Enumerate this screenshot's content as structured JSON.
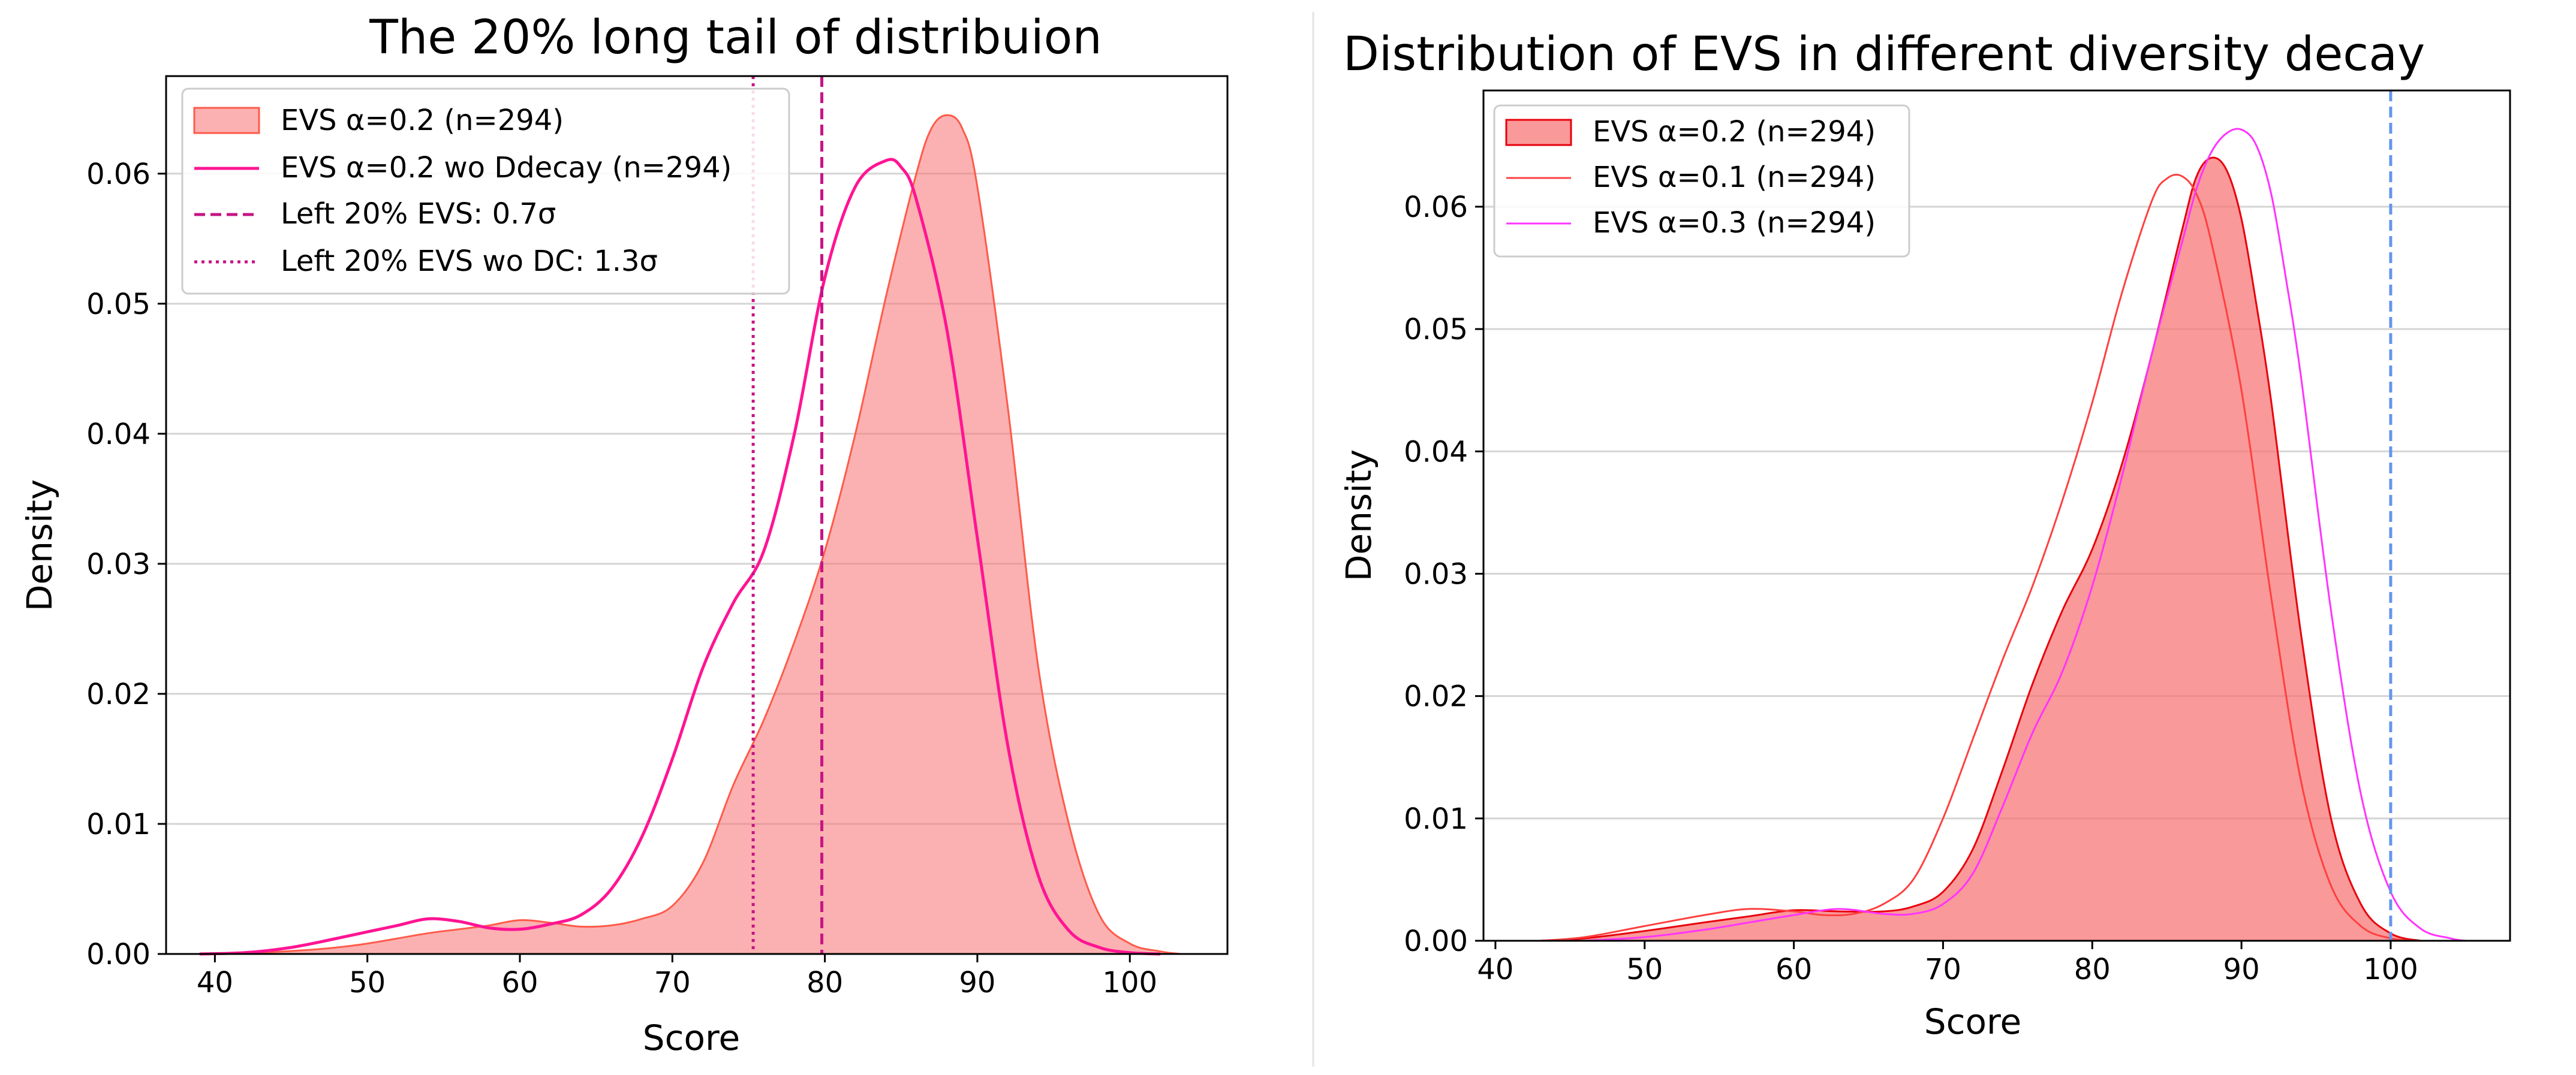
{
  "chart_data": [
    {
      "type": "area",
      "title": "The 20% long tail of distribuion",
      "xlabel": "Score",
      "ylabel": "Density",
      "xlim": [
        36.8,
        106.4
      ],
      "ylim": [
        0,
        0.0675
      ],
      "xticks": [
        40,
        50,
        60,
        70,
        80,
        90,
        100
      ],
      "yticks": [
        0.0,
        0.01,
        0.02,
        0.03,
        0.04,
        0.05,
        0.06
      ],
      "ytick_labels": [
        "0.00",
        "0.01",
        "0.02",
        "0.03",
        "0.04",
        "0.05",
        "0.06"
      ],
      "grid": "horizontal",
      "legend_location": "upper-left",
      "series": [
        {
          "name": "EVS α=0.2 (n=294)",
          "kind": "filled",
          "fill": "#f87171",
          "fill_opacity": 0.55,
          "stroke": "#ff5a4a",
          "x": [
            40,
            43,
            46,
            48,
            50,
            52,
            54,
            56,
            58,
            60,
            62,
            64,
            66,
            68,
            70,
            72,
            74,
            76,
            78,
            80,
            82,
            84,
            86,
            87,
            88,
            89,
            90,
            92,
            94,
            96,
            98,
            100,
            102,
            103.3
          ],
          "y": [
            0.0,
            0.0001,
            0.0003,
            0.0005,
            0.0008,
            0.0012,
            0.0016,
            0.0019,
            0.0022,
            0.0026,
            0.0024,
            0.0021,
            0.0022,
            0.0027,
            0.0037,
            0.007,
            0.013,
            0.018,
            0.024,
            0.031,
            0.04,
            0.0505,
            0.06,
            0.0635,
            0.0645,
            0.0635,
            0.059,
            0.042,
            0.022,
            0.01,
            0.003,
            0.0008,
            0.0002,
            0.0
          ]
        },
        {
          "name": "EVS α=0.2 wo Ddecay (n=294)",
          "kind": "line",
          "stroke": "#ff1493",
          "x": [
            39,
            42,
            45,
            48,
            50,
            52,
            54,
            56,
            58,
            60,
            62,
            64,
            66,
            68,
            70,
            72,
            74,
            76,
            78,
            80,
            82,
            84,
            85,
            86,
            88,
            90,
            92,
            94,
            96,
            98,
            100,
            102
          ],
          "y": [
            0.0,
            0.0001,
            0.0005,
            0.0012,
            0.0017,
            0.0022,
            0.0027,
            0.0025,
            0.002,
            0.0019,
            0.0023,
            0.003,
            0.005,
            0.009,
            0.015,
            0.022,
            0.027,
            0.031,
            0.04,
            0.052,
            0.059,
            0.061,
            0.0605,
            0.058,
            0.048,
            0.032,
            0.016,
            0.006,
            0.0018,
            0.0005,
            0.0001,
            0.0
          ]
        }
      ],
      "vlines": [
        {
          "name": "Left 20% EVS: 0.7σ",
          "x": 79.8,
          "style": "dashed",
          "color": "#c71585"
        },
        {
          "name": "Left 20% EVS wo DC: 1.3σ",
          "x": 75.3,
          "style": "dotted",
          "color": "#c71585"
        }
      ]
    },
    {
      "type": "area",
      "title": "Distribution of EVS in different diversity decay",
      "xlabel": "Score",
      "ylabel": "Density",
      "xlim": [
        39.2,
        108.0
      ],
      "ylim": [
        0,
        0.0695
      ],
      "xticks": [
        40,
        50,
        60,
        70,
        80,
        90,
        100
      ],
      "yticks": [
        0.0,
        0.01,
        0.02,
        0.03,
        0.04,
        0.05,
        0.06
      ],
      "ytick_labels": [
        "0.00",
        "0.01",
        "0.02",
        "0.03",
        "0.04",
        "0.05",
        "0.06"
      ],
      "grid": "horizontal",
      "legend_location": "upper-left",
      "series": [
        {
          "name": "EVS α=0.2 (n=294)",
          "kind": "filled",
          "fill": "#f87171",
          "fill_opacity": 0.72,
          "stroke": "#e8000b",
          "x": [
            43,
            46,
            50,
            54,
            57,
            60,
            63,
            66,
            68,
            70,
            72,
            74,
            76,
            78,
            80,
            82,
            84,
            86,
            87,
            88,
            89,
            90,
            91,
            92,
            94,
            96,
            98,
            100,
            102
          ],
          "y": [
            0.0,
            0.0002,
            0.0008,
            0.0015,
            0.002,
            0.0025,
            0.0024,
            0.0024,
            0.0028,
            0.004,
            0.0075,
            0.014,
            0.021,
            0.027,
            0.032,
            0.039,
            0.048,
            0.058,
            0.0625,
            0.064,
            0.063,
            0.059,
            0.052,
            0.044,
            0.025,
            0.01,
            0.003,
            0.0006,
            0.0
          ]
        },
        {
          "name": "EVS α=0.1 (n=294)",
          "kind": "line",
          "stroke": "#ff4040",
          "x": [
            43,
            46,
            50,
            54,
            57,
            60,
            62,
            64,
            66,
            68,
            70,
            72,
            74,
            76,
            78,
            80,
            82,
            84,
            85,
            86,
            87,
            88,
            90,
            92,
            94,
            96,
            98,
            100,
            102
          ],
          "y": [
            0.0,
            0.0003,
            0.0012,
            0.0021,
            0.0026,
            0.0024,
            0.0021,
            0.0022,
            0.003,
            0.005,
            0.01,
            0.0165,
            0.023,
            0.029,
            0.036,
            0.044,
            0.053,
            0.0605,
            0.0623,
            0.0625,
            0.061,
            0.057,
            0.045,
            0.028,
            0.013,
            0.0045,
            0.0012,
            0.0002,
            0.0
          ]
        },
        {
          "name": "EVS α=0.3 (n=294)",
          "kind": "line",
          "stroke": "#ff33ff",
          "x": [
            46,
            50,
            54,
            57,
            60,
            63,
            66,
            68,
            70,
            72,
            74,
            76,
            78,
            80,
            82,
            84,
            86,
            87,
            88,
            89,
            90,
            91,
            92,
            93,
            94,
            96,
            98,
            100,
            102,
            104,
            105
          ],
          "y": [
            0.0,
            0.0003,
            0.0009,
            0.0015,
            0.0021,
            0.0026,
            0.0022,
            0.0022,
            0.003,
            0.0055,
            0.011,
            0.017,
            0.022,
            0.029,
            0.038,
            0.048,
            0.057,
            0.0615,
            0.0645,
            0.066,
            0.0663,
            0.065,
            0.061,
            0.054,
            0.046,
            0.027,
            0.012,
            0.004,
            0.001,
            0.0002,
            0.0
          ]
        }
      ],
      "vlines": [
        {
          "name": "",
          "x": 100,
          "style": "dashed",
          "color": "#6495ed"
        }
      ]
    }
  ],
  "colors": {
    "divider": "#e3e3e3",
    "grid": "#d4d4d4"
  }
}
